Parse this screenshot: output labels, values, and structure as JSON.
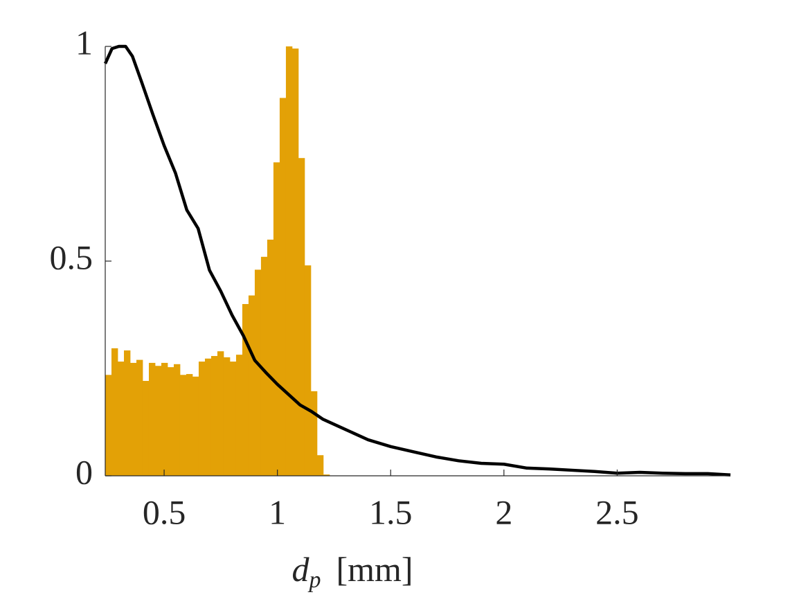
{
  "chart_data": {
    "type": "histogram",
    "xlabel": {
      "symbol": "d",
      "subscript": "p",
      "unit": "[mm]"
    },
    "bins": [
      0.24,
      0.2675,
      0.295,
      0.3225,
      0.35,
      0.3775,
      0.405,
      0.4325,
      0.46,
      0.4875,
      0.515,
      0.5425,
      0.57,
      0.5975,
      0.625,
      0.6525,
      0.68,
      0.7075,
      0.735,
      0.7625,
      0.79,
      0.8175,
      0.845,
      0.8725,
      0.9,
      0.9275,
      0.955,
      0.9825,
      1.01,
      1.0375,
      1.065,
      1.0925,
      1.12,
      1.1475,
      1.175,
      1.2025,
      1.23
    ],
    "values": [
      0.235,
      0.297,
      0.266,
      0.292,
      0.263,
      0.27,
      0.221,
      0.263,
      0.256,
      0.263,
      0.253,
      0.26,
      0.235,
      0.237,
      0.231,
      0.266,
      0.273,
      0.279,
      0.29,
      0.276,
      0.266,
      0.282,
      0.4,
      0.42,
      0.48,
      0.51,
      0.55,
      0.73,
      0.88,
      1.0,
      0.995,
      0.74,
      0.49,
      0.197,
      0.048,
      0.003
    ],
    "color": "#e3a106",
    "line": {
      "type": "line",
      "color": "#000000",
      "x": [
        0.24,
        0.27,
        0.3,
        0.33,
        0.36,
        0.4,
        0.45,
        0.5,
        0.55,
        0.6,
        0.65,
        0.7,
        0.75,
        0.8,
        0.85,
        0.9,
        0.95,
        1.0,
        1.05,
        1.1,
        1.15,
        1.2,
        1.3,
        1.4,
        1.5,
        1.6,
        1.7,
        1.8,
        1.9,
        2.0,
        2.1,
        2.2,
        2.3,
        2.4,
        2.5,
        2.6,
        2.7,
        2.8,
        2.9,
        3.0
      ],
      "values": [
        0.96,
        0.995,
        1.0,
        1.0,
        0.977,
        0.918,
        0.842,
        0.769,
        0.705,
        0.619,
        0.576,
        0.479,
        0.43,
        0.374,
        0.326,
        0.269,
        0.24,
        0.213,
        0.189,
        0.165,
        0.15,
        0.132,
        0.108,
        0.084,
        0.068,
        0.056,
        0.044,
        0.035,
        0.029,
        0.027,
        0.018,
        0.016,
        0.013,
        0.01,
        0.006,
        0.008,
        0.006,
        0.005,
        0.005,
        0.002
      ]
    },
    "xlim": [
      0.24,
      3.0
    ],
    "ylim": [
      0,
      1
    ],
    "xticks": [
      0.5,
      1,
      1.5,
      2,
      2.5
    ],
    "yticks": [
      0,
      0.5,
      1
    ]
  }
}
